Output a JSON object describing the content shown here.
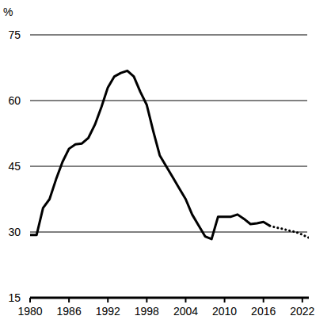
{
  "chart_data": {
    "type": "line",
    "y_label": "%",
    "x": [
      1980,
      1981,
      1982,
      1983,
      1984,
      1985,
      1986,
      1987,
      1988,
      1989,
      1990,
      1991,
      1992,
      1993,
      1994,
      1995,
      1996,
      1997,
      1998,
      1999,
      2000,
      2001,
      2002,
      2003,
      2004,
      2005,
      2006,
      2007,
      2008,
      2009,
      2010,
      2011,
      2012,
      2013,
      2014,
      2015,
      2016,
      2017,
      2018,
      2019,
      2020,
      2021,
      2022,
      2023
    ],
    "series": [
      {
        "color": "#000000",
        "line_style": "solid",
        "values": [
          29.3,
          29.3,
          35.5,
          37.5,
          42,
          46,
          49,
          50,
          50.2,
          51.5,
          54.5,
          58.5,
          63,
          65.5,
          66.3,
          66.8,
          65.5,
          62,
          59,
          53,
          47.5,
          45,
          42.5,
          40,
          37.5,
          34,
          31.5,
          29,
          28.4,
          33.5,
          33.5,
          33.5,
          34,
          33,
          31.8,
          32,
          32.3,
          31.4,
          null,
          null,
          null,
          null,
          null,
          null
        ]
      },
      {
        "color": "#000000",
        "line_style": "dotted",
        "values": [
          null,
          null,
          null,
          null,
          null,
          null,
          null,
          null,
          null,
          null,
          null,
          null,
          null,
          null,
          null,
          null,
          null,
          null,
          null,
          null,
          null,
          null,
          null,
          null,
          null,
          null,
          null,
          null,
          null,
          null,
          null,
          null,
          null,
          null,
          null,
          null,
          null,
          31.4,
          31,
          30.7,
          30.3,
          30,
          29.4,
          28.7
        ]
      }
    ],
    "xlim": [
      1980,
      2023
    ],
    "xticks": [
      1980,
      1986,
      1992,
      1998,
      2004,
      2010,
      2016,
      2022
    ],
    "ylim": [
      15,
      75
    ],
    "yticks": [
      15,
      30,
      45,
      60,
      75
    ],
    "grid": true
  }
}
